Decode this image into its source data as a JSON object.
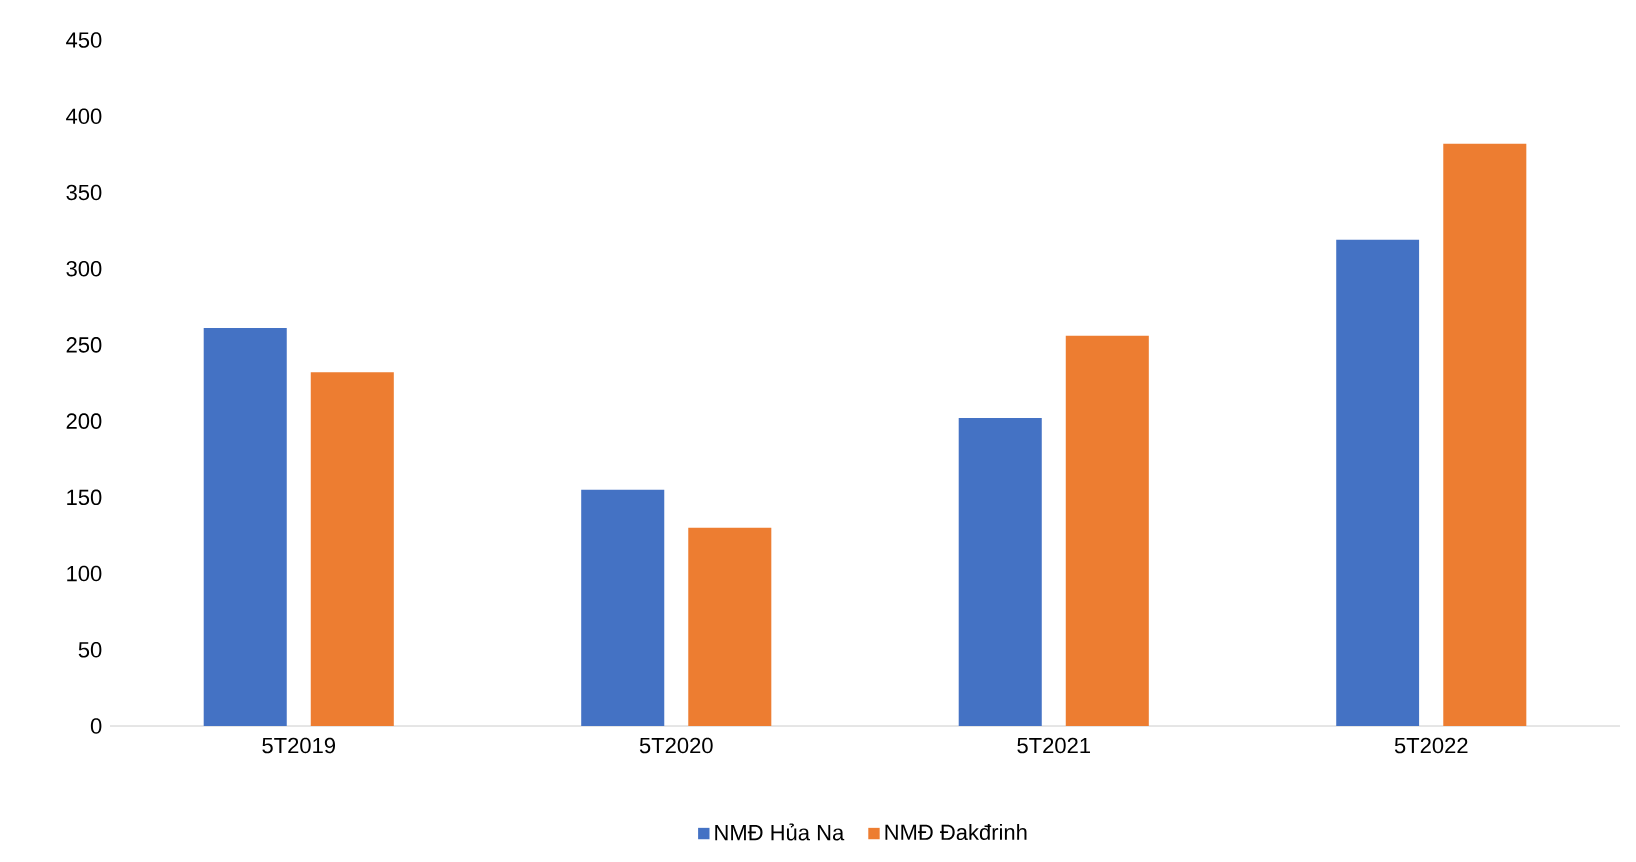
{
  "chart_data": {
    "type": "bar",
    "categories": [
      "5T2019",
      "5T2020",
      "5T2021",
      "5T2022"
    ],
    "series": [
      {
        "name": "NMĐ Hủa Na",
        "color": "#4472c4",
        "values": [
          261,
          155,
          202,
          319
        ]
      },
      {
        "name": "NMĐ Đakđrinh",
        "color": "#ed7d31",
        "values": [
          232,
          130,
          256,
          382
        ]
      }
    ],
    "ylim": [
      0,
      450
    ],
    "yticks": [
      0,
      50,
      100,
      150,
      200,
      250,
      300,
      350,
      400,
      450
    ],
    "legend": "bottom"
  }
}
